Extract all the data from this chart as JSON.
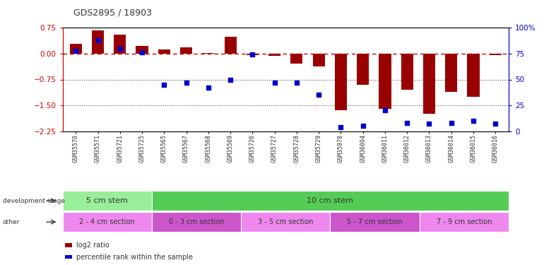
{
  "title": "GDS2895 / 18903",
  "categories": [
    "GSM35570",
    "GSM35571",
    "GSM35721",
    "GSM35725",
    "GSM35565",
    "GSM35567",
    "GSM35568",
    "GSM35569",
    "GSM35726",
    "GSM35727",
    "GSM35728",
    "GSM35729",
    "GSM35978",
    "GSM36004",
    "GSM36011",
    "GSM36012",
    "GSM36013",
    "GSM36014",
    "GSM36015",
    "GSM36016"
  ],
  "log2_ratio": [
    0.28,
    0.68,
    0.55,
    0.22,
    0.12,
    0.18,
    0.02,
    0.5,
    -0.05,
    -0.07,
    -0.28,
    -0.38,
    -1.65,
    -0.9,
    -1.6,
    -1.05,
    -1.75,
    -1.1,
    -1.25,
    -0.05
  ],
  "percentile": [
    78,
    88,
    80,
    76,
    45,
    47,
    42,
    50,
    74,
    47,
    47,
    35,
    4,
    5,
    20,
    8,
    7,
    8,
    10,
    7
  ],
  "ylim_left": [
    -2.25,
    0.75
  ],
  "ylim_right": [
    0,
    100
  ],
  "yticks_left": [
    0.75,
    0,
    -0.75,
    -1.5,
    -2.25
  ],
  "yticks_right": [
    100,
    75,
    50,
    25,
    0
  ],
  "bar_color": "#990000",
  "dot_color": "#0000cc",
  "hline_color": "#cc0000",
  "dotted_line_color": "#555555",
  "bg_color": "#ffffff",
  "dev_stage_groups": [
    {
      "label": "5 cm stem",
      "start": 0,
      "end": 3,
      "color": "#99ee99"
    },
    {
      "label": "10 cm stem",
      "start": 4,
      "end": 19,
      "color": "#55cc55"
    }
  ],
  "other_groups": [
    {
      "label": "2 - 4 cm section",
      "start": 0,
      "end": 3,
      "color": "#ee88ee"
    },
    {
      "label": "0 - 3 cm section",
      "start": 4,
      "end": 7,
      "color": "#cc55cc"
    },
    {
      "label": "3 - 5 cm section",
      "start": 8,
      "end": 11,
      "color": "#ee88ee"
    },
    {
      "label": "5 - 7 cm section",
      "start": 12,
      "end": 15,
      "color": "#cc55cc"
    },
    {
      "label": "7 - 9 cm section",
      "start": 16,
      "end": 19,
      "color": "#ee88ee"
    }
  ],
  "legend_items": [
    {
      "label": "log2 ratio",
      "color": "#990000"
    },
    {
      "label": "percentile rank within the sample",
      "color": "#0000cc"
    }
  ]
}
